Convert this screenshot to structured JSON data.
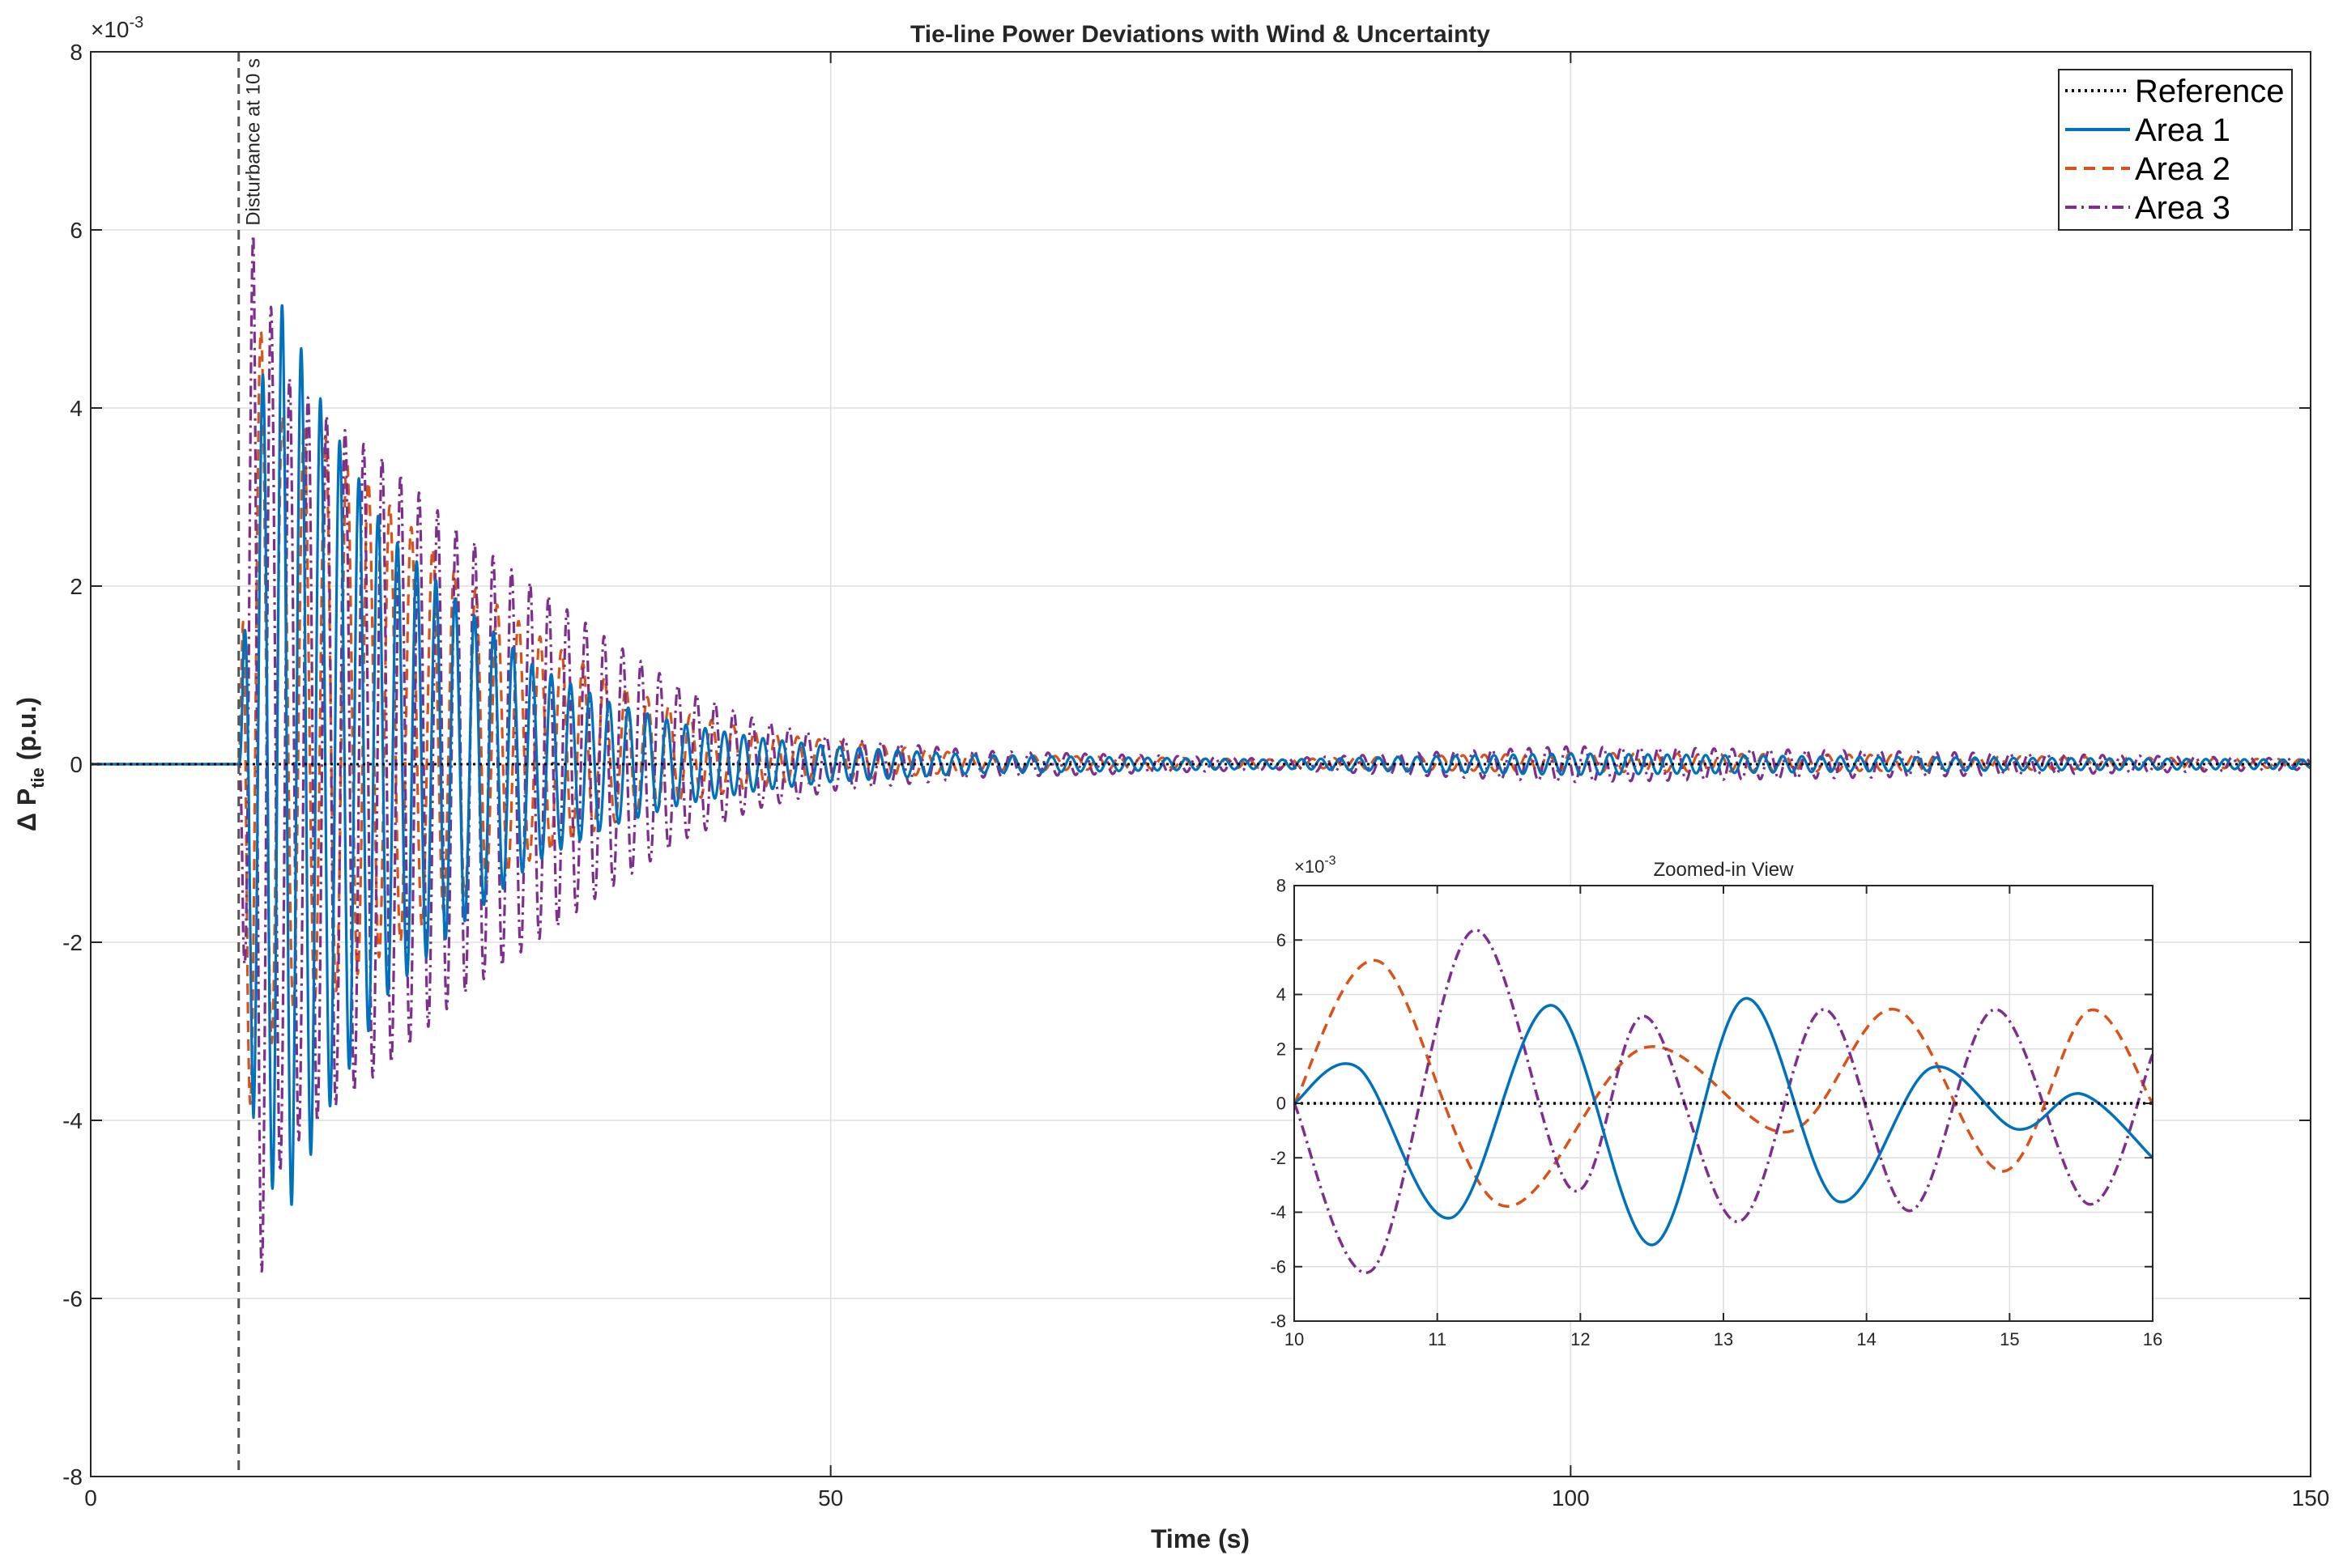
{
  "chart_data": [
    {
      "id": "main",
      "type": "line",
      "title": "Tie-line Power Deviations with Wind & Uncertainty",
      "xlabel": "Time (s)",
      "ylabel_main": "Δ  P",
      "ylabel_sub": "tie",
      "ylabel_unit": " (p.u.)",
      "exponent_label": "×10",
      "exponent_power": "-3",
      "xlim": [
        0,
        150
      ],
      "ylim": [
        -8,
        8
      ],
      "xticks": [
        0,
        50,
        100,
        150
      ],
      "yticks": [
        -8,
        -6,
        -4,
        -2,
        0,
        2,
        4,
        6,
        8
      ],
      "grid": true,
      "legend_position": "top-right",
      "annotation": {
        "text": "Disturbance at 10 s",
        "x": 10
      },
      "series": [
        {
          "name": "Reference",
          "color": "#000000",
          "style": "dotted",
          "x": [
            0,
            150
          ],
          "y": [
            0,
            0
          ]
        },
        {
          "name": "Area 1",
          "color": "#0072BD",
          "style": "solid",
          "env": [
            [
              0,
              0
            ],
            [
              10,
              0
            ],
            [
              11,
              4
            ],
            [
              13,
              5.2
            ],
            [
              16,
              3.9
            ],
            [
              20,
              2.6
            ],
            [
              25,
              1.8
            ],
            [
              30,
              1.1
            ],
            [
              35,
              0.7
            ],
            [
              40,
              0.45
            ],
            [
              45,
              0.3
            ],
            [
              50,
              0.2
            ],
            [
              60,
              0.1
            ],
            [
              80,
              0.05
            ],
            [
              100,
              0.12
            ],
            [
              120,
              0.08
            ],
            [
              150,
              0.05
            ]
          ],
          "period": 1.3,
          "phase": 0
        },
        {
          "name": "Area 2",
          "color": "#D95319",
          "style": "dashed",
          "env": [
            [
              0,
              0
            ],
            [
              10,
              0
            ],
            [
              10.6,
              5.2
            ],
            [
              13,
              3.7
            ],
            [
              16,
              3.5
            ],
            [
              20,
              2.8
            ],
            [
              25,
              2.0
            ],
            [
              30,
              1.4
            ],
            [
              35,
              0.9
            ],
            [
              40,
              0.55
            ],
            [
              45,
              0.35
            ],
            [
              50,
              0.25
            ],
            [
              60,
              0.1
            ],
            [
              80,
              0.05
            ],
            [
              100,
              0.12
            ],
            [
              120,
              0.1
            ],
            [
              150,
              0.05
            ]
          ],
          "period": 1.45,
          "phase": 1.3
        },
        {
          "name": "Area 3",
          "color": "#7E2F8E",
          "style": "dashdot",
          "env": [
            [
              0,
              0
            ],
            [
              10,
              0
            ],
            [
              11,
              6.2
            ],
            [
              13,
              4.4
            ],
            [
              16,
              3.9
            ],
            [
              20,
              3.4
            ],
            [
              25,
              2.6
            ],
            [
              30,
              2.0
            ],
            [
              35,
              1.4
            ],
            [
              40,
              0.85
            ],
            [
              45,
              0.5
            ],
            [
              50,
              0.3
            ],
            [
              60,
              0.15
            ],
            [
              80,
              0.06
            ],
            [
              100,
              0.2
            ],
            [
              120,
              0.15
            ],
            [
              150,
              0.06
            ]
          ],
          "period": 1.25,
          "phase": 3.14
        }
      ]
    },
    {
      "id": "inset",
      "type": "line",
      "title": "Zoomed-in View",
      "exponent_label": "×10",
      "exponent_power": "-3",
      "xlim": [
        10,
        16
      ],
      "ylim": [
        -8,
        8
      ],
      "xticks": [
        10,
        11,
        12,
        13,
        14,
        15,
        16
      ],
      "yticks": [
        -8,
        -6,
        -4,
        -2,
        0,
        2,
        4,
        6,
        8
      ],
      "grid": true,
      "series": [
        {
          "name": "Reference",
          "color": "#000000",
          "style": "dotted",
          "points": [
            [
              10,
              0
            ],
            [
              16,
              0
            ]
          ]
        },
        {
          "name": "Area 1",
          "color": "#0072BD",
          "style": "solid",
          "points": [
            [
              10,
              0
            ],
            [
              10.45,
              1.3
            ],
            [
              11.1,
              -4.2
            ],
            [
              11.8,
              3.6
            ],
            [
              12.5,
              -5.2
            ],
            [
              13.15,
              3.85
            ],
            [
              13.8,
              -3.6
            ],
            [
              14.45,
              1.3
            ],
            [
              15.05,
              -0.95
            ],
            [
              15.5,
              0.35
            ],
            [
              16,
              -2.0
            ]
          ]
        },
        {
          "name": "Area 2",
          "color": "#D95319",
          "style": "dashed",
          "points": [
            [
              10,
              0
            ],
            [
              10.6,
              5.2
            ],
            [
              11.45,
              -3.75
            ],
            [
              12.45,
              2.05
            ],
            [
              13.45,
              -1.05
            ],
            [
              14.2,
              3.45
            ],
            [
              14.95,
              -2.5
            ],
            [
              15.55,
              3.4
            ],
            [
              16,
              0
            ]
          ]
        },
        {
          "name": "Area 3",
          "color": "#7E2F8E",
          "style": "dashdot",
          "points": [
            [
              10,
              0
            ],
            [
              10.55,
              -6.1
            ],
            [
              11.25,
              6.35
            ],
            [
              11.95,
              -3.2
            ],
            [
              12.45,
              3.2
            ],
            [
              13.1,
              -4.35
            ],
            [
              13.7,
              3.45
            ],
            [
              14.3,
              -3.95
            ],
            [
              14.9,
              3.45
            ],
            [
              15.55,
              -3.7
            ],
            [
              16,
              1.8
            ]
          ]
        }
      ]
    }
  ]
}
